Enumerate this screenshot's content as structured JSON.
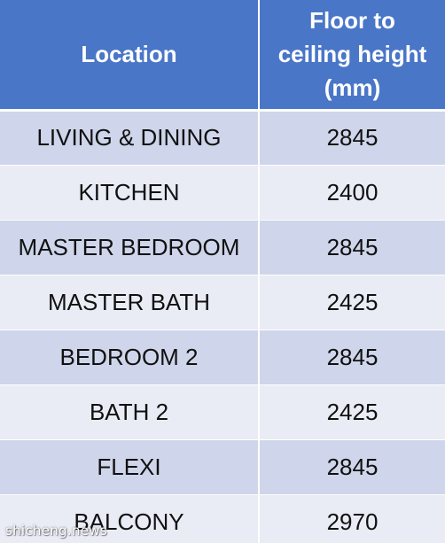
{
  "table": {
    "headers": [
      "Location",
      "Floor to\nceiling height\n(mm)"
    ],
    "header_lines": [
      "Floor to",
      "ceiling height",
      "(mm)"
    ],
    "rows": [
      {
        "location": "LIVING & DINING",
        "height": "2845"
      },
      {
        "location": "KITCHEN",
        "height": "2400"
      },
      {
        "location": "MASTER BEDROOM",
        "height": "2845"
      },
      {
        "location": "MASTER BATH",
        "height": "2425"
      },
      {
        "location": "BEDROOM 2",
        "height": "2845"
      },
      {
        "location": "BATH 2",
        "height": "2425"
      },
      {
        "location": "FLEXI",
        "height": "2845"
      },
      {
        "location": "BALCONY",
        "height": "2970"
      }
    ]
  },
  "watermark": "shicheng.news",
  "colors": {
    "header_bg": "#4a76c8",
    "header_text": "#ffffff",
    "row_dark": "#cfd5ea",
    "row_light": "#e9ebf5",
    "body_text": "#111111"
  }
}
